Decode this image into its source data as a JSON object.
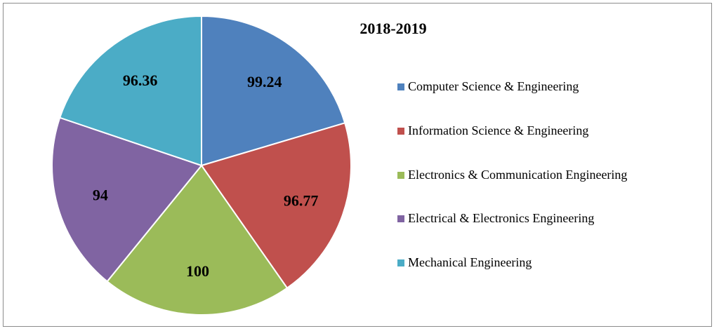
{
  "chart_data": {
    "type": "pie",
    "title": "2018-2019",
    "categories": [
      "Computer Science & Engineering",
      "Information Science & Engineering",
      "Electronics & Communication Engineering",
      "Electrical & Electronics Engineering",
      "Mechanical Engineering"
    ],
    "values": [
      99.24,
      96.77,
      100,
      94,
      96.36
    ],
    "value_labels": [
      "99.24",
      "96.77",
      "100",
      "94",
      "96.36"
    ],
    "colors": [
      "#4f81bd",
      "#c0504d",
      "#9bbb59",
      "#8064a2",
      "#4bacc6"
    ],
    "legend_position": "right"
  }
}
